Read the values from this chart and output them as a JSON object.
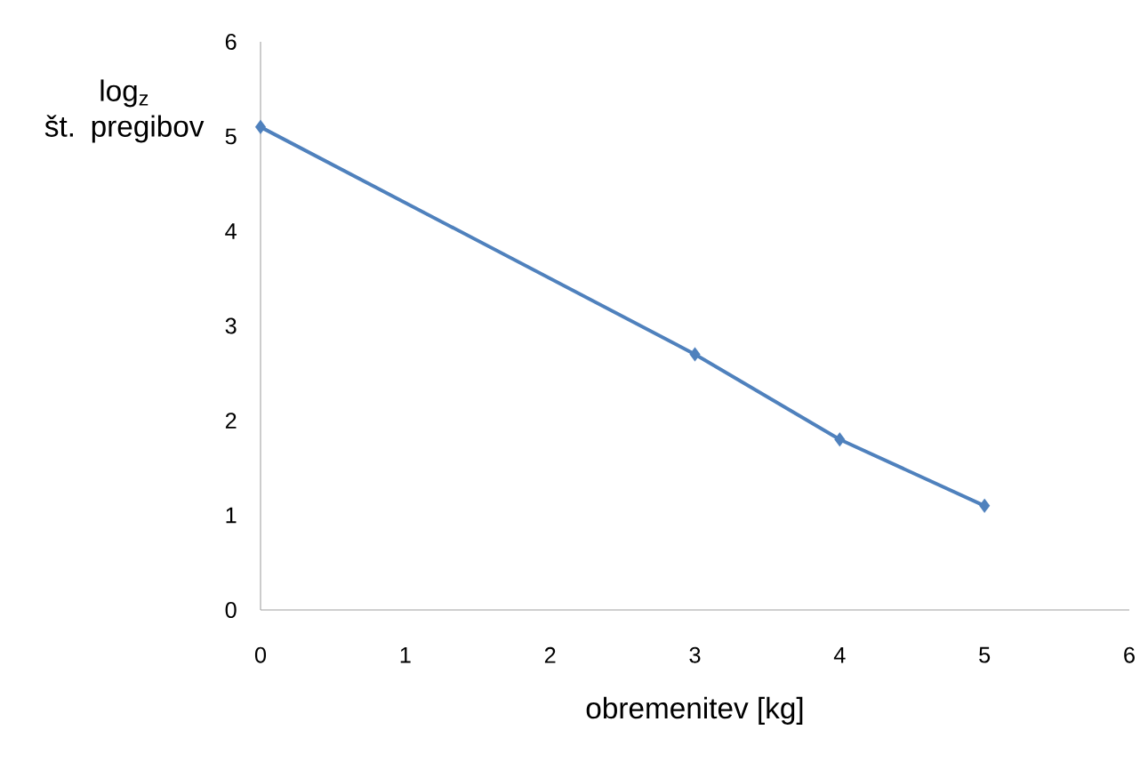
{
  "chart_data": {
    "type": "line",
    "xlabel": "obremenitev [kg]",
    "ylabel": "log$_{z}$\nšt. pregibov",
    "x": [
      0,
      3,
      4,
      5
    ],
    "series": [
      {
        "color": "#4f81bd",
        "values": [
          5.1,
          2.7,
          1.8,
          1.1
        ]
      }
    ],
    "xlim": [
      0,
      6
    ],
    "ylim": [
      0,
      6
    ],
    "xticks": [
      0,
      1,
      2,
      3,
      4,
      5,
      6
    ],
    "yticks": [
      0,
      1,
      2,
      3,
      4,
      5,
      6
    ],
    "marker": "diamond",
    "line_style": "solid"
  }
}
